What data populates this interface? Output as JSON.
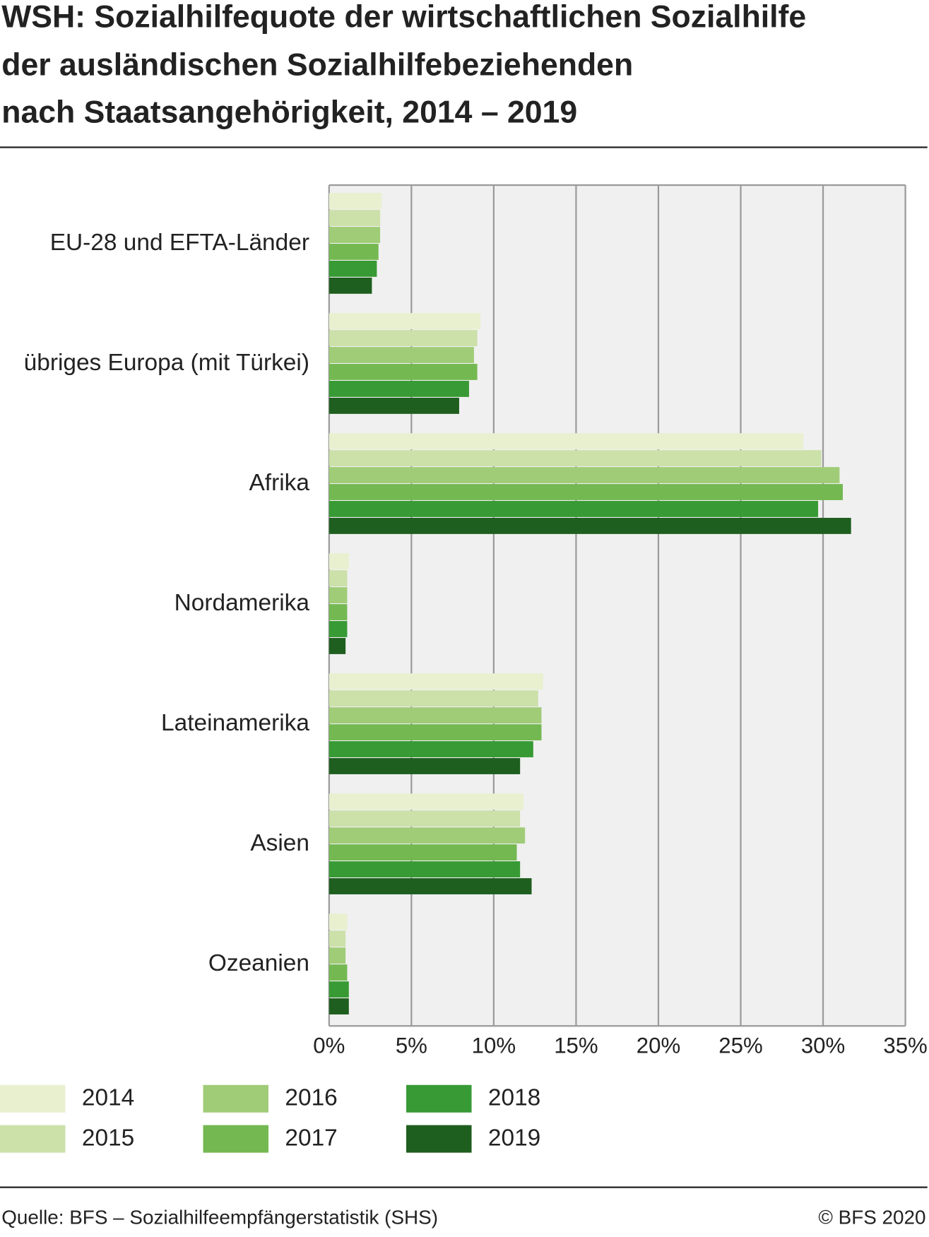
{
  "chart_data": {
    "type": "hbar",
    "title_lines": [
      "WSH: Sozialhilfequote der wirtschaftlichen Sozialhilfe",
      "der ausländischen Sozialhilfebeziehenden",
      "nach Staatsangehörigkeit, 2014 – 2019"
    ],
    "categories": [
      "EU-28 und EFTA-Länder",
      "übriges Europa (mit Türkei)",
      "Afrika",
      "Nordamerika",
      "Lateinamerika",
      "Asien",
      "Ozeanien"
    ],
    "series": [
      {
        "name": "2014",
        "color": "#e8f0d0",
        "values": [
          3.2,
          9.2,
          28.8,
          1.2,
          13.0,
          11.8,
          1.1
        ]
      },
      {
        "name": "2015",
        "color": "#cce0aa",
        "values": [
          3.1,
          9.0,
          29.9,
          1.1,
          12.7,
          11.6,
          1.0
        ]
      },
      {
        "name": "2016",
        "color": "#a0cc78",
        "values": [
          3.1,
          8.8,
          31.0,
          1.1,
          12.9,
          11.9,
          1.0
        ]
      },
      {
        "name": "2017",
        "color": "#74b852",
        "values": [
          3.0,
          9.0,
          31.2,
          1.1,
          12.9,
          11.4,
          1.1
        ]
      },
      {
        "name": "2018",
        "color": "#389a34",
        "values": [
          2.9,
          8.5,
          29.7,
          1.1,
          12.4,
          11.6,
          1.2
        ]
      },
      {
        "name": "2019",
        "color": "#1e5e1e",
        "values": [
          2.6,
          7.9,
          31.7,
          1.0,
          11.6,
          12.3,
          1.2
        ]
      }
    ],
    "xlim": [
      0,
      35
    ],
    "xticks": [
      {
        "value": 0,
        "label": "0%"
      },
      {
        "value": 5,
        "label": "5%"
      },
      {
        "value": 10,
        "label": "10%"
      },
      {
        "value": 15,
        "label": "15%"
      },
      {
        "value": 20,
        "label": "20%"
      },
      {
        "value": 25,
        "label": "25%"
      },
      {
        "value": 30,
        "label": "30%"
      },
      {
        "value": 35,
        "label": "35%"
      }
    ],
    "grid": true,
    "source": "Quelle: BFS – Sozialhilfeempfängerstatistik (SHS)",
    "copyright": "© BFS 2020"
  }
}
